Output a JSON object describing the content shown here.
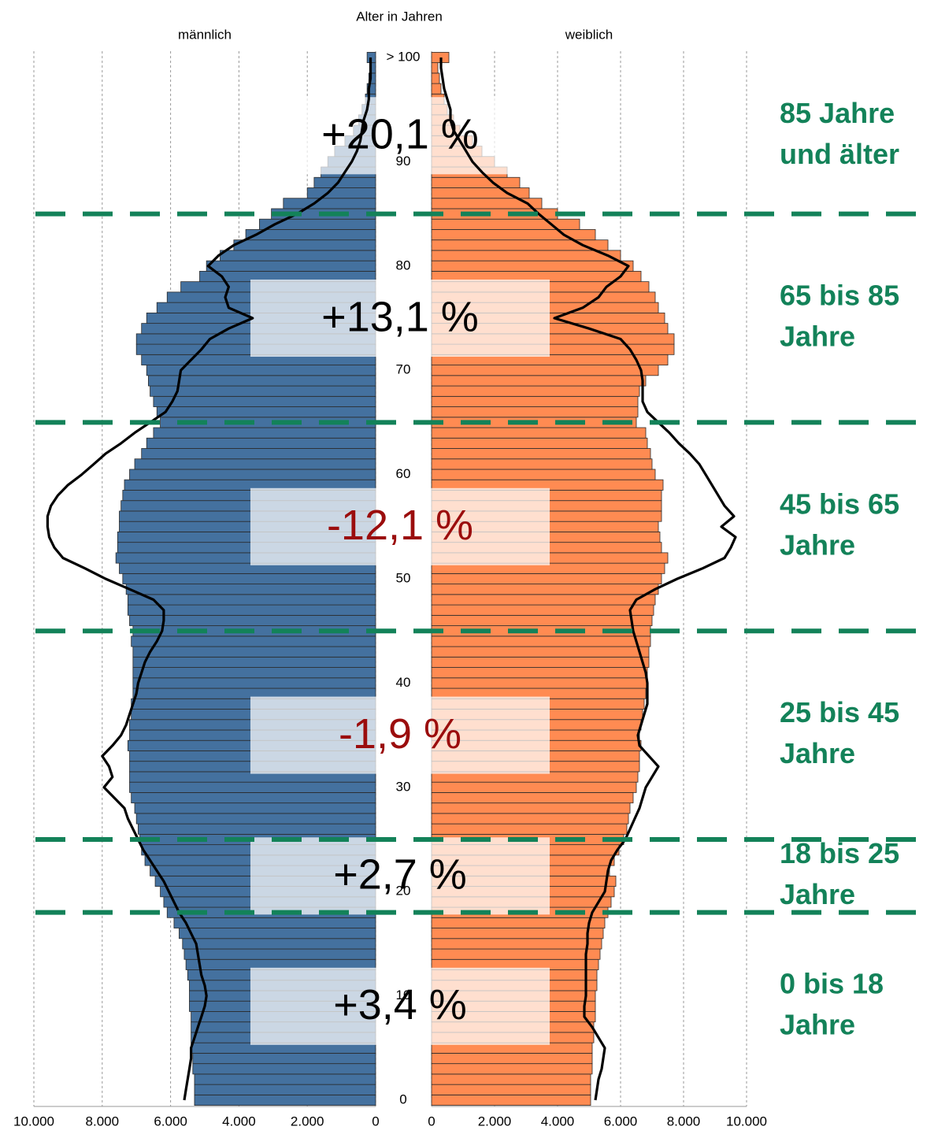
{
  "chart_data": {
    "type": "pyramid",
    "y_label": "Alter in Jahren",
    "categories": [
      0,
      null,
      null,
      null,
      null,
      null,
      null,
      null,
      null,
      null,
      10,
      null,
      null,
      null,
      null,
      null,
      null,
      null,
      null,
      null,
      20,
      null,
      null,
      null,
      null,
      null,
      null,
      null,
      null,
      null,
      30,
      null,
      null,
      null,
      null,
      null,
      null,
      null,
      null,
      null,
      40,
      null,
      null,
      null,
      null,
      null,
      null,
      null,
      null,
      null,
      50,
      null,
      null,
      null,
      null,
      null,
      null,
      null,
      null,
      null,
      60,
      null,
      null,
      null,
      null,
      null,
      null,
      null,
      null,
      null,
      70,
      null,
      null,
      null,
      null,
      null,
      null,
      null,
      null,
      null,
      80,
      null,
      null,
      null,
      null,
      null,
      null,
      null,
      null,
      null,
      90,
      null,
      null,
      null,
      null,
      null,
      null,
      null,
      null,
      null,
      "> 100"
    ],
    "xlim": [
      0,
      10000
    ],
    "xticks": [
      {
        "value": 10000,
        "label": "10.000"
      },
      {
        "value": 8000,
        "label": "8.000"
      },
      {
        "value": 6000,
        "label": "6.000"
      },
      {
        "value": 4000,
        "label": "4.000"
      },
      {
        "value": 2000,
        "label": "2.000"
      },
      0
    ],
    "grid": true,
    "series": [
      {
        "name": "männlich",
        "side": "left",
        "color": "#44719f",
        "line_color": "#000000",
        "values": [
          5300,
          5300,
          5300,
          5350,
          5350,
          5400,
          5400,
          5400,
          5400,
          5450,
          5450,
          5450,
          5500,
          5550,
          5600,
          5650,
          5750,
          5900,
          6100,
          6200,
          6300,
          6450,
          6600,
          6750,
          6850,
          6900,
          6950,
          7000,
          7050,
          7150,
          7200,
          7200,
          7200,
          7200,
          7250,
          7200,
          7200,
          7150,
          7150,
          7100,
          7100,
          7100,
          7100,
          7100,
          7150,
          7100,
          7200,
          7250,
          7250,
          7300,
          7400,
          7500,
          7600,
          7550,
          7550,
          7500,
          7500,
          7450,
          7400,
          7350,
          7200,
          7050,
          6850,
          6700,
          6500,
          6300,
          6400,
          6500,
          6600,
          6650,
          6700,
          6850,
          7000,
          7000,
          6850,
          6700,
          6400,
          6100,
          5700,
          5150,
          4950,
          4550,
          4150,
          3800,
          3400,
          3050,
          2700,
          2000,
          1800,
          1600,
          1400,
          1200,
          900,
          650,
          500,
          400,
          300,
          250,
          200,
          150,
          250
        ],
        "line_values": [
          5600,
          5550,
          5500,
          5450,
          5400,
          5400,
          5300,
          5200,
          5100,
          5000,
          4950,
          5000,
          5100,
          5150,
          5200,
          5250,
          5400,
          5550,
          5750,
          5900,
          6050,
          6200,
          6400,
          6600,
          6800,
          6950,
          7100,
          7250,
          7350,
          7650,
          7950,
          7700,
          7800,
          8000,
          7700,
          7450,
          7300,
          7200,
          7100,
          7000,
          6950,
          6850,
          6750,
          6600,
          6400,
          6250,
          6200,
          6200,
          6500,
          7200,
          7900,
          8500,
          9150,
          9400,
          9550,
          9600,
          9600,
          9500,
          9300,
          9000,
          8600,
          8250,
          7900,
          7450,
          7050,
          6600,
          6150,
          5950,
          5800,
          5750,
          5700,
          5400,
          5100,
          4850,
          4300,
          3600,
          4300,
          4400,
          4300,
          4500,
          4900,
          4600,
          4150,
          3500,
          2950,
          2300,
          1800,
          1400,
          1100,
          900,
          700,
          550,
          450,
          400,
          350,
          250,
          200,
          200,
          150,
          150,
          150
        ]
      },
      {
        "name": "weiblich",
        "side": "right",
        "color": "#ff8b52",
        "line_color": "#000000",
        "values": [
          5050,
          5050,
          5050,
          5100,
          5100,
          5100,
          5150,
          5150,
          5200,
          5200,
          5200,
          5250,
          5250,
          5300,
          5350,
          5400,
          5450,
          5500,
          5600,
          5700,
          5800,
          5850,
          5650,
          5800,
          5950,
          6100,
          6200,
          6250,
          6300,
          6400,
          6500,
          6550,
          6600,
          6600,
          6650,
          6600,
          6650,
          6700,
          6750,
          6800,
          6850,
          6850,
          6900,
          6900,
          6950,
          6950,
          7000,
          7050,
          7100,
          7200,
          7300,
          7400,
          7500,
          7300,
          7250,
          7200,
          7300,
          7300,
          7300,
          7350,
          7100,
          7000,
          6950,
          6850,
          6800,
          6500,
          6550,
          6550,
          6600,
          6800,
          7200,
          7500,
          7700,
          7700,
          7500,
          7400,
          7200,
          7100,
          6900,
          6650,
          6400,
          6000,
          5600,
          5200,
          4700,
          4000,
          3500,
          3100,
          2800,
          2400,
          2000,
          1600,
          1300,
          900,
          700,
          500,
          400,
          300,
          250,
          200,
          550
        ],
        "line_values": [
          5200,
          5250,
          5300,
          5400,
          5450,
          5500,
          5300,
          5100,
          4850,
          4850,
          4900,
          4900,
          4900,
          4900,
          4900,
          4950,
          4950,
          5000,
          5100,
          5300,
          5500,
          5550,
          5600,
          5700,
          5900,
          6150,
          6300,
          6450,
          6600,
          6700,
          6800,
          7000,
          7200,
          6900,
          6600,
          6550,
          6650,
          6750,
          6850,
          6850,
          6850,
          6800,
          6700,
          6600,
          6500,
          6400,
          6350,
          6300,
          6500,
          7100,
          7800,
          8600,
          9300,
          9500,
          9650,
          9200,
          9600,
          9300,
          9100,
          8900,
          8700,
          8500,
          8200,
          7850,
          7550,
          7200,
          6850,
          6700,
          6700,
          6700,
          6650,
          6500,
          6300,
          6000,
          5000,
          3900,
          4800,
          5300,
          5550,
          6000,
          6250,
          5600,
          4800,
          4200,
          3800,
          3400,
          3050,
          2400,
          1950,
          1600,
          1300,
          1100,
          900,
          700,
          600,
          600,
          500,
          400,
          350,
          300,
          300
        ]
      }
    ],
    "bands": [
      {
        "label": [
          "85 Jahre",
          "und älter"
        ],
        "change": "+20,1 %",
        "change_color": "#000000",
        "lower_age": 85,
        "upper_age": 100
      },
      {
        "label": [
          "65 bis 85",
          "Jahre"
        ],
        "change": "+13,1 %",
        "change_color": "#000000",
        "lower_age": 65,
        "upper_age": 85
      },
      {
        "label": [
          "45 bis 65",
          "Jahre"
        ],
        "change": "-12,1 %",
        "change_color": "#9b0d0d",
        "lower_age": 45,
        "upper_age": 65
      },
      {
        "label": [
          "25 bis 45",
          "Jahre"
        ],
        "change": "-1,9 %",
        "change_color": "#9b0d0d",
        "lower_age": 25,
        "upper_age": 45
      },
      {
        "label": [
          "18 bis 25",
          "Jahre"
        ],
        "change": "+2,7 %",
        "change_color": "#000000",
        "lower_age": 18,
        "upper_age": 25
      },
      {
        "label": [
          "0 bis 18",
          "Jahre"
        ],
        "change": "+3,4 %",
        "change_color": "#000000",
        "lower_age": 0,
        "upper_age": 18
      }
    ],
    "band_line_color": "#138259"
  }
}
